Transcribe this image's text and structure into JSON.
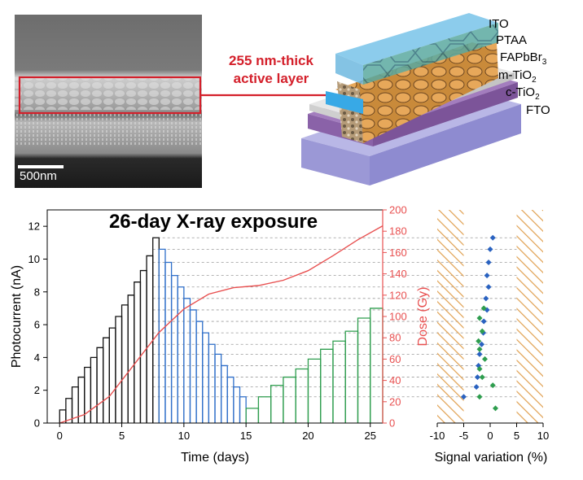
{
  "sem": {
    "scale_bar": "500nm",
    "callout": [
      "255 nm-thick",
      "active layer"
    ]
  },
  "device_layers": [
    {
      "name": "ITO",
      "sub": ""
    },
    {
      "name": "PTAA",
      "sub": ""
    },
    {
      "name": "FAPbBr",
      "sub": "3"
    },
    {
      "name": "m-TiO",
      "sub": "2"
    },
    {
      "name": "c-TiO",
      "sub": "2"
    },
    {
      "name": "FTO",
      "sub": ""
    }
  ],
  "colors": {
    "highlight": "#d4202b",
    "rising": "#111111",
    "falling": "#2f6fc9",
    "recovery": "#2e9d4e",
    "dose": "#e85050",
    "hatch": "#e0a050",
    "diamond_blue": "#2a62c0",
    "diamond_green": "#2e9d4e"
  },
  "chart_data": [
    {
      "type": "step-line",
      "title": "26-day X-ray exposure",
      "xlabel": "Time (days)",
      "ylabel": "Photocurrent (nA)",
      "y2label": "Dose (Gy)",
      "xlim": [
        -1,
        26
      ],
      "ylim": [
        0,
        13
      ],
      "y2lim": [
        0,
        200
      ],
      "xticks": [
        0,
        5,
        10,
        15,
        20,
        25
      ],
      "yticks": [
        0,
        2,
        4,
        6,
        8,
        10,
        12
      ],
      "y2ticks": [
        0,
        20,
        40,
        60,
        80,
        100,
        120,
        140,
        160,
        180,
        200
      ],
      "series": [
        {
          "name": "",
          "color_key": "rising",
          "steps": [
            {
              "t0": 0,
              "t1": 0.5,
              "v": 0.8
            },
            {
              "t0": 0.5,
              "t1": 1.0,
              "v": 1.5
            },
            {
              "t0": 1.0,
              "t1": 1.5,
              "v": 2.2
            },
            {
              "t0": 1.5,
              "t1": 2.0,
              "v": 2.8
            },
            {
              "t0": 2.0,
              "t1": 2.5,
              "v": 3.4
            },
            {
              "t0": 2.5,
              "t1": 3.0,
              "v": 4.0
            },
            {
              "t0": 3.0,
              "t1": 3.5,
              "v": 4.6
            },
            {
              "t0": 3.5,
              "t1": 4.0,
              "v": 5.2
            },
            {
              "t0": 4.0,
              "t1": 4.5,
              "v": 5.8
            },
            {
              "t0": 4.5,
              "t1": 5.0,
              "v": 6.5
            },
            {
              "t0": 5.0,
              "t1": 5.5,
              "v": 7.2
            },
            {
              "t0": 5.5,
              "t1": 6.0,
              "v": 7.8
            },
            {
              "t0": 6.0,
              "t1": 6.5,
              "v": 8.6
            },
            {
              "t0": 6.5,
              "t1": 7.0,
              "v": 9.3
            },
            {
              "t0": 7.0,
              "t1": 7.5,
              "v": 10.2
            },
            {
              "t0": 7.5,
              "t1": 8.0,
              "v": 11.3
            }
          ]
        },
        {
          "name": "",
          "color_key": "falling",
          "steps": [
            {
              "t0": 8.0,
              "t1": 8.5,
              "v": 10.6
            },
            {
              "t0": 8.5,
              "t1": 9.0,
              "v": 9.8
            },
            {
              "t0": 9.0,
              "t1": 9.5,
              "v": 9.0
            },
            {
              "t0": 9.5,
              "t1": 10.0,
              "v": 8.3
            },
            {
              "t0": 10.0,
              "t1": 10.5,
              "v": 7.6
            },
            {
              "t0": 10.5,
              "t1": 11.0,
              "v": 6.9
            },
            {
              "t0": 11.0,
              "t1": 11.5,
              "v": 6.2
            },
            {
              "t0": 11.5,
              "t1": 12.0,
              "v": 5.5
            },
            {
              "t0": 12.0,
              "t1": 12.5,
              "v": 4.8
            },
            {
              "t0": 12.5,
              "t1": 13.0,
              "v": 4.2
            },
            {
              "t0": 13.0,
              "t1": 13.5,
              "v": 3.5
            },
            {
              "t0": 13.5,
              "t1": 14.0,
              "v": 2.8
            },
            {
              "t0": 14.0,
              "t1": 14.5,
              "v": 2.2
            },
            {
              "t0": 14.5,
              "t1": 15.0,
              "v": 1.6
            }
          ]
        },
        {
          "name": "",
          "color_key": "recovery",
          "steps": [
            {
              "t0": 15.0,
              "t1": 16.0,
              "v": 0.9
            },
            {
              "t0": 16.0,
              "t1": 17.0,
              "v": 1.6
            },
            {
              "t0": 17.0,
              "t1": 18.0,
              "v": 2.3
            },
            {
              "t0": 18.0,
              "t1": 19.0,
              "v": 2.8
            },
            {
              "t0": 19.0,
              "t1": 20.0,
              "v": 3.3
            },
            {
              "t0": 20.0,
              "t1": 21.0,
              "v": 3.9
            },
            {
              "t0": 21.0,
              "t1": 22.0,
              "v": 4.5
            },
            {
              "t0": 22.0,
              "t1": 23.0,
              "v": 5.0
            },
            {
              "t0": 23.0,
              "t1": 24.0,
              "v": 5.6
            },
            {
              "t0": 24.0,
              "t1": 25.0,
              "v": 6.4
            },
            {
              "t0": 25.0,
              "t1": 26.0,
              "v": 7.0
            }
          ]
        }
      ],
      "dose_curve": {
        "axis": "y2",
        "color_key": "dose",
        "x": [
          0,
          2,
          4,
          6,
          8,
          10,
          12,
          14,
          16,
          18,
          20,
          22,
          24,
          26
        ],
        "y": [
          0,
          8,
          25,
          55,
          85,
          107,
          121,
          127,
          129,
          134,
          143,
          157,
          172,
          185
        ]
      },
      "dashed_levels": [
        11.3,
        10.6,
        9.8,
        9.0,
        8.3,
        7.6,
        6.9,
        6.2,
        5.5,
        4.8,
        4.2,
        3.5,
        2.8,
        2.2,
        1.6
      ]
    },
    {
      "type": "scatter",
      "xlabel": "Signal variation (%)",
      "xlim": [
        -10,
        10
      ],
      "xticks": [
        -10,
        -5,
        0,
        5,
        10
      ],
      "hatched_ranges": [
        [
          -10,
          -5
        ],
        [
          5,
          10
        ]
      ],
      "series": [
        {
          "name": "",
          "color_key": "diamond_blue",
          "x": [
            0.5,
            0,
            -0.3,
            -0.6,
            -0.3,
            -0.8,
            -0.6,
            -1.2,
            -1.3,
            -1.6,
            -2.0,
            -2.2,
            -2.4,
            -2.6,
            -5.0
          ],
          "y": [
            11.3,
            10.6,
            9.8,
            9.0,
            8.3,
            7.6,
            6.9,
            6.2,
            5.5,
            4.8,
            4.2,
            3.5,
            2.8,
            2.2,
            1.6
          ]
        },
        {
          "name": "",
          "color_key": "diamond_green",
          "x": [
            1.0,
            -2.0,
            0.5,
            -1.5,
            -2.0,
            -1.0,
            -2.0,
            -2.2,
            -1.5,
            -2.0,
            -1.2
          ],
          "y": [
            0.9,
            1.6,
            2.3,
            2.8,
            3.3,
            3.9,
            4.5,
            5.0,
            5.6,
            6.4,
            7.0
          ]
        }
      ]
    }
  ]
}
